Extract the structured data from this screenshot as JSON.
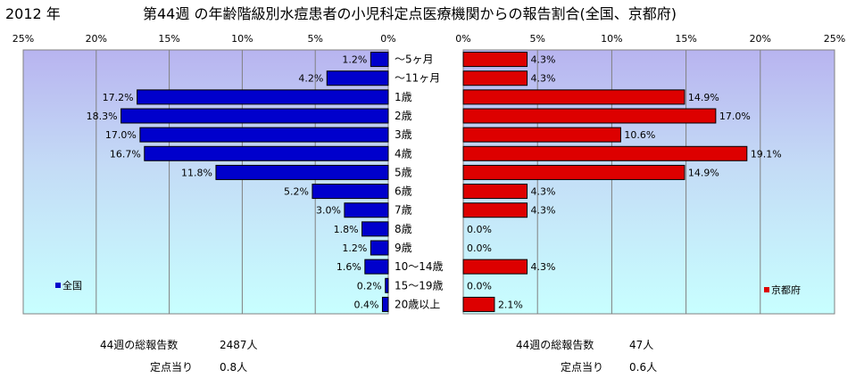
{
  "year_label": "2012 年",
  "title": "第44週 の年齢階級別水痘患者の小児科定点医療機関からの報告割合(全国、京都府)",
  "chart_data": [
    {
      "type": "bar",
      "orientation": "horizontal",
      "direction": "right-to-left",
      "legend": "全国",
      "legend_placement": "bottom-left",
      "color": "#0000CC",
      "xlim": [
        0,
        25
      ],
      "ticks": [
        "25%",
        "20%",
        "15%",
        "10%",
        "5%",
        "0%"
      ],
      "categories": [
        "〜5ヶ月",
        "〜11ヶ月",
        "1歳",
        "2歳",
        "3歳",
        "4歳",
        "5歳",
        "6歳",
        "7歳",
        "8歳",
        "9歳",
        "10〜14歳",
        "15〜19歳",
        "20歳以上"
      ],
      "values": [
        1.2,
        4.2,
        17.2,
        18.3,
        17.0,
        16.7,
        11.8,
        5.2,
        3.0,
        1.8,
        1.2,
        1.6,
        0.2,
        0.4
      ],
      "data_labels": [
        "1.2%",
        "4.2%",
        "17.2%",
        "18.3%",
        "17.0%",
        "16.7%",
        "11.8%",
        "5.2%",
        "3.0%",
        "1.8%",
        "1.2%",
        "1.6%",
        "0.2%",
        "0.4%"
      ]
    },
    {
      "type": "bar",
      "orientation": "horizontal",
      "direction": "left-to-right",
      "legend": "京都府",
      "legend_placement": "bottom-right",
      "color": "#DD0000",
      "xlim": [
        0,
        25
      ],
      "ticks": [
        "0%",
        "5%",
        "10%",
        "15%",
        "20%",
        "25%"
      ],
      "categories": [
        "〜5ヶ月",
        "〜11ヶ月",
        "1歳",
        "2歳",
        "3歳",
        "4歳",
        "5歳",
        "6歳",
        "7歳",
        "8歳",
        "9歳",
        "10〜14歳",
        "15〜19歳",
        "20歳以上"
      ],
      "values": [
        4.3,
        4.3,
        14.9,
        17.0,
        10.6,
        19.1,
        14.9,
        4.3,
        4.3,
        0.0,
        0.0,
        4.3,
        0.0,
        2.1
      ],
      "data_labels": [
        "4.3%",
        "4.3%",
        "14.9%",
        "17.0%",
        "10.6%",
        "19.1%",
        "14.9%",
        "4.3%",
        "4.3%",
        "0.0%",
        "0.0%",
        "4.3%",
        "0.0%",
        "2.1%"
      ]
    }
  ],
  "stats": {
    "national": {
      "total_label": "44週の総報告数",
      "total_value": "2487人",
      "per_site_label": "定点当り",
      "per_site_value": "0.8人"
    },
    "kyoto": {
      "total_label": "44週の総報告数",
      "total_value": "47人",
      "per_site_label": "定点当り",
      "per_site_value": "0.6人"
    }
  }
}
